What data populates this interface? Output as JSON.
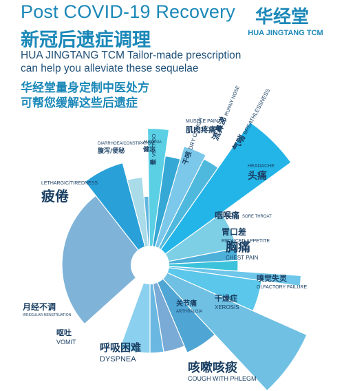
{
  "header": {
    "title_en": "Post COVID-19 Recovery",
    "title_zh": "新冠后遗症调理",
    "brand_zh": "华经堂",
    "brand_en": "HUA JINGTANG TCM"
  },
  "intro": {
    "en_line1": "HUA JINGTANG TCM Tailor-made prescription",
    "en_line2": "can help you alleviate these sequelae",
    "zh_line1": "华经堂量身定制中医处方",
    "zh_line2": "可帮您缓解这些后遗症"
  },
  "colors": {
    "accent": "#1b88b8",
    "dark_text": "#1a3f63"
  },
  "chart_data": {
    "type": "pie",
    "slices": [
      {
        "zh": "疲倦",
        "en": "LETHARGIC/TIREDNESS",
        "value": 1.0,
        "color": "#7fb3d8"
      },
      {
        "zh": "腹泻/便秘",
        "en": "DIARRHOEA/CONSTIPATION",
        "value": 1.2,
        "color": "#2aa0d8"
      },
      {
        "zh": "健忘",
        "en": "AMNESIA",
        "value": 1.0,
        "color": "#a9dbe9"
      },
      {
        "zh": "晕",
        "en": "VERTIGO",
        "value": 0.78,
        "color": "#5fb6e0"
      },
      {
        "zh": "肌肉疼痛",
        "en": "MUSCLE PAIN",
        "value": 1.55,
        "color": "#5bd0e5"
      },
      {
        "zh": "干咳",
        "en": "DRY COUGH",
        "value": 1.25,
        "color": "#36a8d6"
      },
      {
        "zh": "流鼻涕",
        "en": "RUNNY NOSE",
        "value": 1.4,
        "color": "#7cc8ea"
      },
      {
        "zh": "气喘",
        "en": "BREATHLESSNESS",
        "value": 1.35,
        "color": "#4fb9dd"
      },
      {
        "zh": "头痛",
        "en": "HEADACHE",
        "value": 1.98,
        "color": "#24b5e8"
      },
      {
        "zh": "咽喉痛",
        "en": "SORE THROAT",
        "value": 1.0,
        "color": "#7ccfe4"
      },
      {
        "zh": "胃口差",
        "en": "REDUCED APPETITE",
        "value": 1.0,
        "color": "#4cb0d9"
      },
      {
        "zh": "胸痛",
        "en": "CHEST PAIN",
        "value": 1.0,
        "color": "#3cc3db"
      },
      {
        "zh": "嗅觉失灵",
        "en": "OLFACTORY FAILURE",
        "value": 1.72,
        "color": "#6ec6ea"
      },
      {
        "zh": "干燥症",
        "en": "XEROSIS",
        "value": 1.28,
        "color": "#5bc7ea"
      },
      {
        "zh": "咳嗽咳痰",
        "en": "COUGH WITH PHLEGM",
        "value": 1.95,
        "color": "#6fc0e3"
      },
      {
        "zh": "关节痛",
        "en": "ARTHRALGIA",
        "value": 1.08,
        "color": "#4fa6d4"
      },
      {
        "zh": "呼吸困难",
        "en": "DYSPNEA",
        "value": 1.0,
        "color": "#7aaad6"
      },
      {
        "zh": "呕吐",
        "en": "VOMIT",
        "value": 1.0,
        "color": "#6ab8e2"
      },
      {
        "zh": "月经不调",
        "en": "IRREGULAR MENSTRUATION",
        "value": 1.0,
        "color": "#8bd0ef"
      }
    ]
  }
}
